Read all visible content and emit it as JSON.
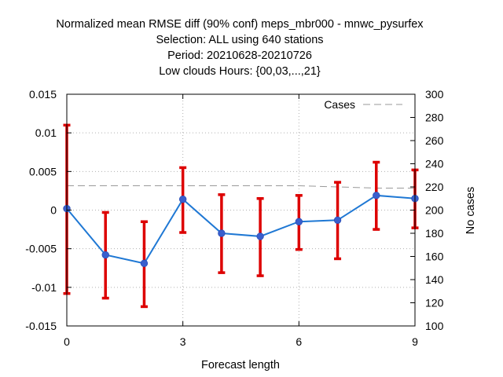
{
  "chart_data": {
    "type": "line",
    "title_lines": [
      "Normalized mean RMSE diff (90% conf) meps_mbr000 - mnwc_pysurfex",
      "Selection: ALL using   640 stations",
      "Period: 20210628-20210726",
      "Low clouds   Hours: {00,03,...,21}"
    ],
    "xlabel": "Forecast length",
    "ylabel": "",
    "y2label": "No cases",
    "xlim": [
      0,
      9
    ],
    "ylim": [
      -0.015,
      0.015
    ],
    "y2lim": [
      100,
      300
    ],
    "xticks": [
      0,
      3,
      6,
      9
    ],
    "yticks": [
      -0.015,
      -0.01,
      -0.005,
      0,
      0.005,
      0.01,
      0.015
    ],
    "ytick_labels": [
      "-0.015",
      "-0.01",
      "-0.005",
      "0",
      "0.005",
      "0.01",
      "0.015"
    ],
    "y2ticks": [
      100,
      120,
      140,
      160,
      180,
      200,
      220,
      240,
      260,
      280,
      300
    ],
    "grid": true,
    "legend_position": "top-right",
    "colors": {
      "line": "#1f78d4",
      "marker": "#3a5fcd",
      "errorbar": "#dd0000",
      "cases": "#999999"
    },
    "series": [
      {
        "x": [
          0,
          1,
          2,
          3,
          4,
          5,
          6,
          7,
          8,
          9
        ],
        "values": [
          0.0002,
          -0.0058,
          -0.0069,
          0.0014,
          -0.003,
          -0.0034,
          -0.0015,
          -0.0013,
          0.0019,
          0.0015
        ],
        "err_low": [
          -0.0108,
          -0.0114,
          -0.0125,
          -0.0029,
          -0.0081,
          -0.0085,
          -0.0051,
          -0.0063,
          -0.0025,
          -0.0023
        ],
        "err_high": [
          0.011,
          -0.0003,
          -0.0015,
          0.0055,
          0.002,
          0.0015,
          0.0019,
          0.0036,
          0.0062,
          0.0052
        ]
      },
      {
        "name": "Cases",
        "axis": "y2",
        "x": [
          0,
          1,
          2,
          3,
          4,
          5,
          6,
          7,
          8,
          9
        ],
        "values": [
          221,
          221,
          221,
          221,
          221,
          221,
          221,
          220,
          219,
          219
        ]
      }
    ]
  }
}
